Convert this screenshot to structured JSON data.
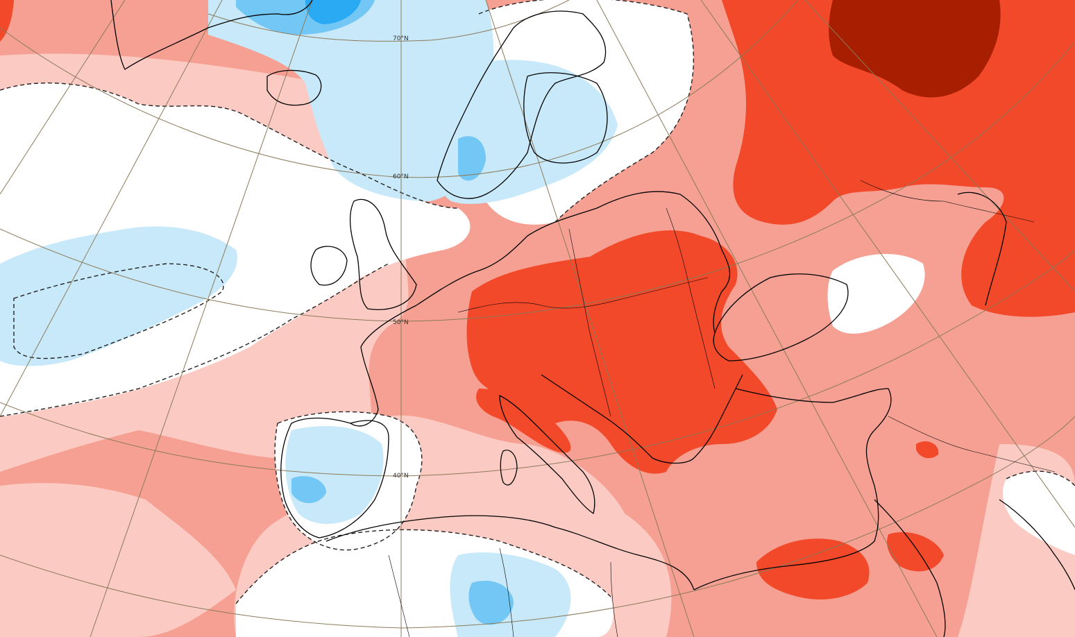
{
  "map": {
    "type": "temperature-anomaly",
    "projection": "polar-stereographic",
    "region": "Europe",
    "palette": {
      "deep_red": "#a81e00",
      "strong_red": "#f2492a",
      "moderate_red": "#f5a092",
      "light_red": "#fbcac3",
      "neutral": "#ffffff",
      "light_blue": "#c8e9f9",
      "medium_blue": "#72c7f4",
      "strong_blue": "#29aaf2",
      "coastline": "#000000",
      "graticule": "#8b7a5a"
    },
    "contour": {
      "style": "dashed",
      "color": "#222222"
    },
    "latitude_labels": [
      {
        "id": "70",
        "text": "70°N"
      },
      {
        "id": "60",
        "text": "60°N"
      },
      {
        "id": "50",
        "text": "50°N"
      },
      {
        "id": "40",
        "text": "40°N"
      }
    ]
  }
}
